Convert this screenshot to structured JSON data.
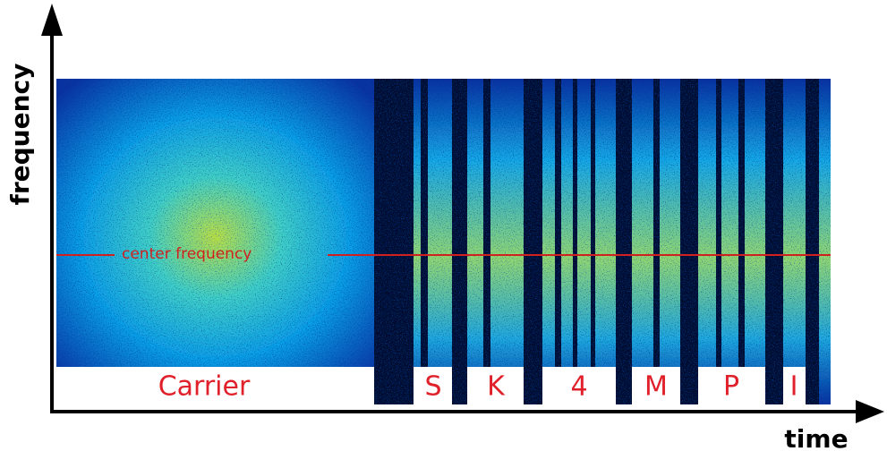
{
  "axes": {
    "y_label": "frequency",
    "x_label": "time"
  },
  "annotation": "center frequency",
  "segments": [
    "Carrier",
    "S",
    "K",
    "4",
    "M",
    "P",
    "I"
  ]
}
